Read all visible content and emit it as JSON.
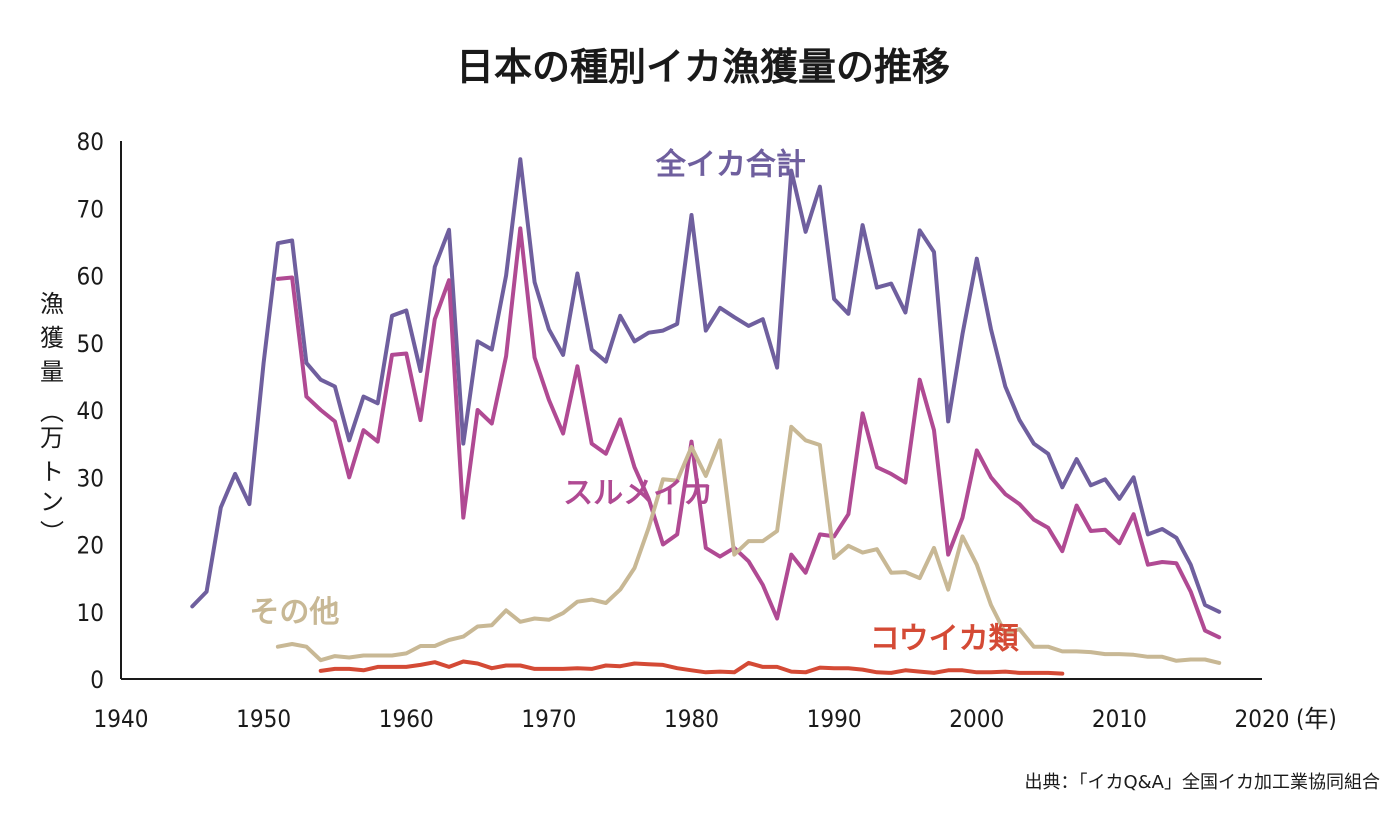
{
  "chart_data": {
    "type": "line",
    "title": "日本の種別イカ漁獲量の推移",
    "ylabel": [
      "漁",
      "獲",
      "量",
      "︵",
      "万",
      "ト",
      "ン",
      "︶"
    ],
    "xunit": "(年)",
    "source": "出典：「イカQ&A」全国イカ加工業協同組合",
    "xlim": [
      1940,
      2020
    ],
    "ylim": [
      0,
      80
    ],
    "xticks": [
      1940,
      1950,
      1960,
      1970,
      1980,
      1990,
      2000,
      2010,
      2020
    ],
    "yticks": [
      0,
      10,
      20,
      30,
      40,
      50,
      60,
      70,
      80
    ],
    "series": [
      {
        "name": "全イカ合計",
        "color": "#6f5f9e",
        "x": [
          1945,
          1946,
          1947,
          1948,
          1949,
          1950,
          1951,
          1952,
          1953,
          1954,
          1955,
          1956,
          1957,
          1958,
          1959,
          1960,
          1961,
          1962,
          1963,
          1964,
          1965,
          1966,
          1967,
          1968,
          1969,
          1970,
          1971,
          1972,
          1973,
          1974,
          1975,
          1976,
          1977,
          1978,
          1979,
          1980,
          1981,
          1982,
          1983,
          1984,
          1985,
          1986,
          1987,
          1988,
          1989,
          1990,
          1991,
          1992,
          1993,
          1994,
          1995,
          1996,
          1997,
          1998,
          1999,
          2000,
          2001,
          2002,
          2003,
          2004,
          2005,
          2006,
          2007,
          2008,
          2009,
          2010,
          2011,
          2012,
          2013,
          2014,
          2015,
          2016,
          2017
        ],
        "values": [
          10.8,
          13,
          25.5,
          30.5,
          26,
          47,
          64.8,
          65.2,
          47,
          44.5,
          43.5,
          35.5,
          42,
          41,
          54,
          54.8,
          45.8,
          61.3,
          66.8,
          35,
          50.2,
          49,
          60,
          77.3,
          59,
          52,
          48.2,
          60.3,
          49,
          47.2,
          54,
          50.2,
          51.5,
          51.8,
          52.8,
          69,
          51.8,
          55.2,
          53.8,
          52.5,
          53.5,
          46.3,
          75.6,
          66.5,
          73.2,
          56.5,
          54.3,
          67.5,
          58.2,
          58.8,
          54.5,
          66.7,
          63.5,
          38.3,
          51.3,
          62.5,
          52,
          43.5,
          38.5,
          35,
          33.5,
          28.5,
          32.7,
          28.8,
          29.7,
          26.8,
          30,
          21.5,
          22.3,
          21,
          17,
          11,
          10
        ]
      },
      {
        "name": "スルメイカ",
        "color": "#b04a93",
        "x": [
          1951,
          1952,
          1953,
          1954,
          1955,
          1956,
          1957,
          1958,
          1959,
          1960,
          1961,
          1962,
          1963,
          1964,
          1965,
          1966,
          1967,
          1968,
          1969,
          1970,
          1971,
          1972,
          1973,
          1974,
          1975,
          1976,
          1977,
          1978,
          1979,
          1980,
          1981,
          1982,
          1983,
          1984,
          1985,
          1986,
          1987,
          1988,
          1989,
          1990,
          1991,
          1992,
          1993,
          1994,
          1995,
          1996,
          1997,
          1998,
          1999,
          2000,
          2001,
          2002,
          2003,
          2004,
          2005,
          2006,
          2007,
          2008,
          2009,
          2010,
          2011,
          2012,
          2013,
          2014,
          2015,
          2016,
          2017
        ],
        "values": [
          59.5,
          59.7,
          42,
          40,
          38.3,
          30,
          37,
          35.3,
          48.2,
          48.4,
          38.5,
          53.5,
          59.3,
          24,
          40,
          38,
          48,
          67,
          47.8,
          41.5,
          36.5,
          46.5,
          35,
          33.5,
          38.6,
          31.5,
          26.8,
          20,
          21.5,
          35.3,
          19.5,
          18.2,
          19.5,
          17.5,
          14,
          9,
          18.5,
          15.8,
          21.5,
          21.2,
          24.5,
          39.5,
          31.5,
          30.5,
          29.2,
          44.5,
          37,
          18.5,
          24,
          34,
          30,
          27.5,
          26,
          23.7,
          22.5,
          19,
          25.8,
          22,
          22.2,
          20.2,
          24.5,
          17,
          17.4,
          17.2,
          13,
          7.2,
          6.2
        ]
      },
      {
        "name": "その他",
        "color": "#c8b895",
        "x": [
          1951,
          1952,
          1953,
          1954,
          1955,
          1956,
          1957,
          1958,
          1959,
          1960,
          1961,
          1962,
          1963,
          1964,
          1965,
          1966,
          1967,
          1968,
          1969,
          1970,
          1971,
          1972,
          1973,
          1974,
          1975,
          1976,
          1977,
          1978,
          1979,
          1980,
          1981,
          1982,
          1983,
          1984,
          1985,
          1986,
          1987,
          1988,
          1989,
          1990,
          1991,
          1992,
          1993,
          1994,
          1995,
          1996,
          1997,
          1998,
          1999,
          2000,
          2001,
          2002,
          2003,
          2004,
          2005,
          2006,
          2007,
          2008,
          2009,
          2010,
          2011,
          2012,
          2013,
          2014,
          2015,
          2016,
          2017
        ],
        "values": [
          4.8,
          5.2,
          4.8,
          2.8,
          3.4,
          3.2,
          3.5,
          3.5,
          3.5,
          3.8,
          4.9,
          4.9,
          5.8,
          6.3,
          7.8,
          8,
          10.2,
          8.5,
          9,
          8.8,
          9.8,
          11.5,
          11.8,
          11.3,
          13.3,
          16.5,
          22.5,
          29.7,
          29.5,
          34.5,
          30.2,
          35.5,
          18.5,
          20.5,
          20.5,
          22,
          37.5,
          35.5,
          34.8,
          18,
          19.8,
          18.8,
          19.3,
          15.8,
          15.9,
          15,
          19.5,
          13.3,
          21.2,
          17,
          11,
          6.8,
          7.4,
          4.8,
          4.8,
          4.1,
          4.1,
          4,
          3.7,
          3.7,
          3.6,
          3.3,
          3.3,
          2.7,
          2.9,
          2.9,
          2.4
        ]
      },
      {
        "name": "コウイカ類",
        "color": "#d44a35",
        "x": [
          1954,
          1955,
          1956,
          1957,
          1958,
          1959,
          1960,
          1961,
          1962,
          1963,
          1964,
          1965,
          1966,
          1967,
          1968,
          1969,
          1970,
          1971,
          1972,
          1973,
          1974,
          1975,
          1976,
          1977,
          1978,
          1979,
          1980,
          1981,
          1982,
          1983,
          1984,
          1985,
          1986,
          1987,
          1988,
          1989,
          1990,
          1991,
          1992,
          1993,
          1994,
          1995,
          1996,
          1997,
          1998,
          1999,
          2000,
          2001,
          2002,
          2003,
          2004,
          2005,
          2006
        ],
        "values": [
          1.2,
          1.5,
          1.5,
          1.3,
          1.8,
          1.8,
          1.8,
          2.1,
          2.5,
          1.8,
          2.6,
          2.3,
          1.6,
          2,
          2,
          1.5,
          1.5,
          1.5,
          1.6,
          1.5,
          2,
          1.9,
          2.3,
          2.2,
          2.1,
          1.6,
          1.3,
          1,
          1.1,
          1,
          2.4,
          1.8,
          1.8,
          1.1,
          1,
          1.7,
          1.6,
          1.6,
          1.4,
          1,
          0.9,
          1.3,
          1.1,
          0.9,
          1.3,
          1.3,
          1,
          1,
          1.1,
          0.9,
          0.9,
          0.9,
          0.8
        ]
      }
    ],
    "annotations": [
      {
        "series": "全イカ合計",
        "text": "全イカ合計",
        "x": 1977.5,
        "y": 75
      },
      {
        "series": "スルメイカ",
        "text": "スルメイカ",
        "x": 1971,
        "y": 26.2
      },
      {
        "series": "その他",
        "text": "その他",
        "x": 1949,
        "y": 8.5
      },
      {
        "series": "コウイカ類",
        "text": "コウイカ類",
        "x": 1992.5,
        "y": 4.5
      }
    ]
  }
}
